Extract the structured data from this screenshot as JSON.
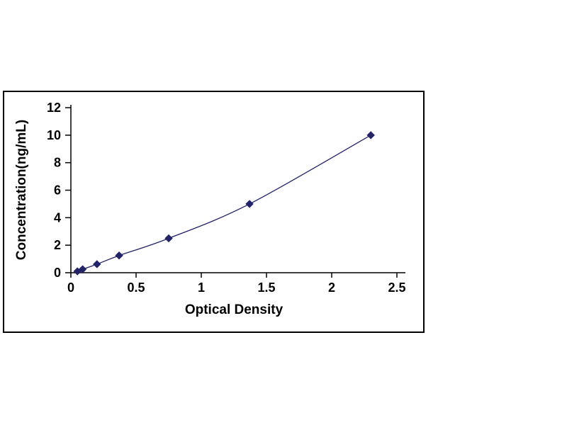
{
  "chart_data": {
    "type": "line",
    "title": "",
    "xlabel": "Optical Density",
    "ylabel": "Concentration(ng/mL)",
    "x": [
      0.05,
      0.09,
      0.2,
      0.37,
      0.75,
      1.37,
      2.3
    ],
    "y": [
      0.1,
      0.25,
      0.62,
      1.25,
      2.5,
      5.0,
      10.0
    ],
    "xlim": [
      0,
      2.5
    ],
    "ylim": [
      0,
      12
    ],
    "xticks": [
      0,
      0.5,
      1,
      1.5,
      2,
      2.5
    ],
    "xtick_labels": [
      "0",
      "0.5",
      "1",
      "1.5",
      "2",
      "2.5"
    ],
    "yticks": [
      0,
      2,
      4,
      6,
      8,
      10,
      12
    ],
    "ytick_labels": [
      "0",
      "2",
      "4",
      "6",
      "8",
      "10",
      "12"
    ],
    "marker": "diamond",
    "grid": "off",
    "legend": "none",
    "colors": {
      "line": "#232368",
      "marker": "#232368",
      "axis": "#000000",
      "frame": "#000000",
      "background": "#ffffff"
    }
  }
}
